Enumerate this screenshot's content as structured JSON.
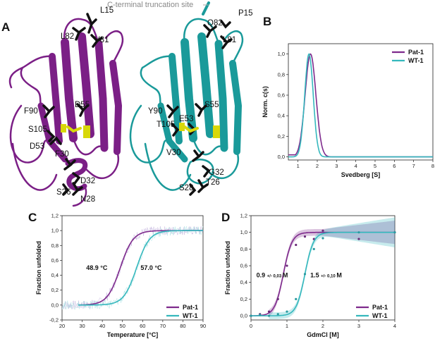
{
  "panels": {
    "A": "A",
    "B": "B",
    "C": "C",
    "D": "D"
  },
  "structure": {
    "callout": "C-terminal truncation site",
    "left_labels": [
      "L15",
      "L82",
      "V81",
      "F90",
      "D55",
      "S105",
      "D53",
      "F30",
      "D32",
      "S26",
      "N28"
    ],
    "right_labels": [
      "Q82",
      "P15",
      "L81",
      "Y90",
      "S55",
      "E53",
      "T105",
      "V30",
      "G32",
      "S28",
      "T26"
    ],
    "colors": {
      "pat": "#7b1f86",
      "wt": "#1a9a9a",
      "sticks": "#111111",
      "disulfide": "#d8d80a"
    }
  },
  "colors": {
    "pat": "#7e2a8c",
    "wt": "#35b8bd"
  },
  "chart_data": [
    {
      "panel": "B",
      "type": "line",
      "xlabel": "Svedberg [S]",
      "ylabel": "Norm. c(s)",
      "xlim": [
        0.5,
        8
      ],
      "ylim": [
        -0.03,
        1.1
      ],
      "xticks": [
        1,
        2,
        3,
        4,
        5,
        6,
        7,
        8
      ],
      "yticks": [
        "0,0",
        "0,2",
        "0,4",
        "0,6",
        "0,8",
        "1,0"
      ],
      "legend": "top-right",
      "series": [
        {
          "name": "Pat-1",
          "peak": 1.65,
          "width": 0.28,
          "baseline": 0.02,
          "height": 1.0
        },
        {
          "name": "WT-1",
          "peak": 1.57,
          "width": 0.22,
          "baseline": 0.0,
          "height": 1.0
        }
      ]
    },
    {
      "panel": "C",
      "type": "line",
      "xlabel": "Temperature [°C]",
      "ylabel": "Fraction unfolded",
      "xlim": [
        20,
        90
      ],
      "ylim": [
        -0.2,
        1.2
      ],
      "xticks": [
        20,
        30,
        40,
        50,
        60,
        70,
        80,
        90
      ],
      "yticks": [
        "-0,2",
        "0,0",
        "0,2",
        "0,4",
        "0,6",
        "0,8",
        "1,0",
        "1,2"
      ],
      "legend": "bottom-right",
      "series": [
        {
          "name": "Pat-1",
          "tm": 48.9,
          "slope": 3.2
        },
        {
          "name": "WT-1",
          "tm": 57.0,
          "slope": 3.2
        }
      ],
      "annotations": [
        "48.9 °C",
        "57.0 °C"
      ]
    },
    {
      "panel": "D",
      "type": "line",
      "xlabel": "GdmCl [M]",
      "ylabel": "Fraction unfolded",
      "xlim": [
        0,
        4
      ],
      "ylim": [
        -0.05,
        1.2
      ],
      "xticks": [
        0,
        1,
        2,
        3,
        4
      ],
      "yticks": [
        "0,0",
        "0,2",
        "0,4",
        "0,6",
        "0,8",
        "1,0",
        "1,2"
      ],
      "legend": "bottom-right",
      "series": [
        {
          "name": "Pat-1",
          "midpoint": 0.9,
          "slope": 0.12,
          "points": [
            [
              0,
              0.0
            ],
            [
              0.25,
              0.02
            ],
            [
              0.5,
              0.05
            ],
            [
              0.75,
              0.2
            ],
            [
              1.0,
              0.6
            ],
            [
              1.25,
              0.85
            ],
            [
              1.5,
              0.95
            ],
            [
              1.75,
              0.92
            ],
            [
              2.0,
              1.02
            ],
            [
              3.0,
              0.92
            ],
            [
              4.0,
              1.0
            ]
          ]
        },
        {
          "name": "WT-1",
          "midpoint": 1.5,
          "slope": 0.12,
          "points": [
            [
              0,
              0.0
            ],
            [
              0.25,
              0.01
            ],
            [
              0.5,
              0.0
            ],
            [
              0.75,
              0.02
            ],
            [
              1.0,
              0.05
            ],
            [
              1.25,
              0.2
            ],
            [
              1.5,
              0.5
            ],
            [
              1.75,
              0.8
            ],
            [
              2.0,
              0.93
            ],
            [
              3.0,
              1.0
            ],
            [
              4.0,
              1.0
            ]
          ]
        }
      ],
      "annotations": [
        {
          "value": "0.9",
          "err": "+/- 0,03",
          "unit": "M"
        },
        {
          "value": "1.5",
          "err": "+/- 0,10",
          "unit": "M"
        }
      ]
    }
  ]
}
